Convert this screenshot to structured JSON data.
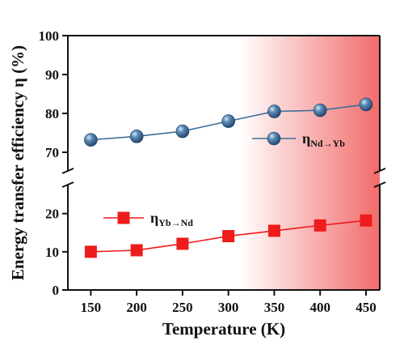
{
  "chart_data": {
    "type": "line",
    "title": "",
    "xlabel": "Temperature (K)",
    "ylabel": "Energy transfer efficiency η (%)",
    "x": [
      150,
      200,
      250,
      300,
      350,
      400,
      450
    ],
    "xlim": [
      125,
      465
    ],
    "y_axis": {
      "broken": true,
      "lower_range": [
        0,
        28
      ],
      "upper_range": [
        65,
        100
      ],
      "lower_ticks": [
        0,
        10,
        20
      ],
      "upper_ticks": [
        70,
        80,
        90,
        100
      ]
    },
    "background_gradient": {
      "from": "#ffffff",
      "to": "#f26b6b",
      "direction": "left-to-right"
    },
    "series": [
      {
        "name": "ηNd→Yb",
        "legend_main": "η",
        "legend_sub": "Nd→Yb",
        "marker": "sphere",
        "color": "#3f6f9a",
        "values": [
          73.2,
          74.1,
          75.4,
          78.0,
          80.5,
          80.8,
          82.3
        ]
      },
      {
        "name": "ηYb→Nd",
        "legend_main": "η",
        "legend_sub": "Yb→Nd",
        "marker": "square",
        "color": "#ee1c1c",
        "values": [
          10.0,
          10.4,
          12.1,
          14.1,
          15.5,
          16.9,
          18.2
        ]
      }
    ],
    "grid": false,
    "legend_placement": "inline"
  }
}
